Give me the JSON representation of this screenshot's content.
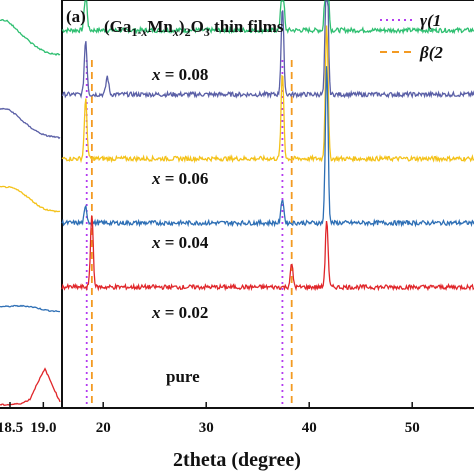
{
  "chart_data": {
    "type": "line",
    "title": "(Ga1-xMnx)2O3 thin films",
    "title_parts": {
      "a": "(Ga",
      "b": "1-",
      "c": "x",
      "d": "Mn",
      "e": "x",
      "f": ")",
      "g": "2",
      "h": "O",
      "i": "3",
      "j": " thin films"
    },
    "panel_label": "(a)",
    "xlabel": "2theta (degree)",
    "ylabel": "",
    "xlim": [
      16,
      56
    ],
    "x_ticks": [
      "20",
      "30",
      "40",
      "50"
    ],
    "x_tick_values": [
      20,
      30,
      40,
      50
    ],
    "left_panel": {
      "x_ticks": [
        "18.5",
        "19.0"
      ],
      "x_tick_values": [
        18.5,
        19.0
      ],
      "xlim": [
        18.35,
        19.28
      ]
    },
    "legend": {
      "position": "top-right",
      "entries": [
        {
          "label": "γ(1",
          "style": "dotted",
          "color": "#b43cf0",
          "peaks_x": [
            18.4,
            37.4
          ]
        },
        {
          "label": "β(2",
          "style": "dashed",
          "color": "#f39a22",
          "peaks_x": [
            18.9,
            38.3
          ]
        }
      ]
    },
    "series": [
      {
        "name": "x = 0.08",
        "label_parts": {
          "v": "x",
          "rest": " = 0.08"
        },
        "color": "#2fbf71",
        "baseline": 1.0,
        "peaks": [
          {
            "x": 18.3,
            "h": 0.9
          },
          {
            "x": 37.4,
            "h": 1.5
          },
          {
            "x": 41.7,
            "h": 3.5
          }
        ],
        "left_trace": [
          0.72,
          0.7,
          0.6,
          0.5,
          0.4,
          0.32,
          0.26,
          0.23,
          0.22
        ]
      },
      {
        "name": "x = 0.06",
        "label_parts": {
          "v": "x",
          "rest": " = 0.06"
        },
        "color": "#5a5fa6",
        "baseline": 0.83,
        "peaks": [
          {
            "x": 18.3,
            "h": 1.2
          },
          {
            "x": 20.4,
            "h": 0.4
          },
          {
            "x": 37.4,
            "h": 1.9
          },
          {
            "x": 41.7,
            "h": 3.5
          }
        ],
        "left_trace": [
          0.6,
          0.6,
          0.52,
          0.4,
          0.3,
          0.22,
          0.16,
          0.14,
          0.12
        ]
      },
      {
        "name": "x = 0.04",
        "label_parts": {
          "v": "x",
          "rest": " = 0.04"
        },
        "color": "#f4c21a",
        "baseline": 0.66,
        "peaks": [
          {
            "x": 18.3,
            "h": 1.3
          },
          {
            "x": 37.4,
            "h": 1.9
          },
          {
            "x": 41.7,
            "h": 3.0
          }
        ],
        "left_trace": [
          0.55,
          0.55,
          0.52,
          0.45,
          0.35,
          0.25,
          0.18,
          0.15,
          0.14
        ]
      },
      {
        "name": "x = 0.02",
        "label_parts": {
          "v": "x",
          "rest": " = 0.02"
        },
        "color": "#2e6fb5",
        "baseline": 0.49,
        "peaks": [
          {
            "x": 18.3,
            "h": 0.35
          },
          {
            "x": 37.4,
            "h": 0.55
          },
          {
            "x": 41.7,
            "h": 3.5
          }
        ],
        "left_trace": [
          0.17,
          0.17,
          0.18,
          0.18,
          0.17,
          0.14,
          0.1,
          0.08,
          0.07
        ]
      },
      {
        "name": "pure",
        "label_parts": {
          "v": "",
          "rest": "pure"
        },
        "color": "#e0262a",
        "baseline": 0.32,
        "peaks": [
          {
            "x": 18.9,
            "h": 1.6
          },
          {
            "x": 38.3,
            "h": 0.5
          },
          {
            "x": 41.7,
            "h": 1.5
          }
        ],
        "left_trace": [
          0.05,
          0.05,
          0.06,
          0.08,
          0.15,
          0.45,
          0.7,
          0.4,
          0.1
        ]
      }
    ]
  }
}
